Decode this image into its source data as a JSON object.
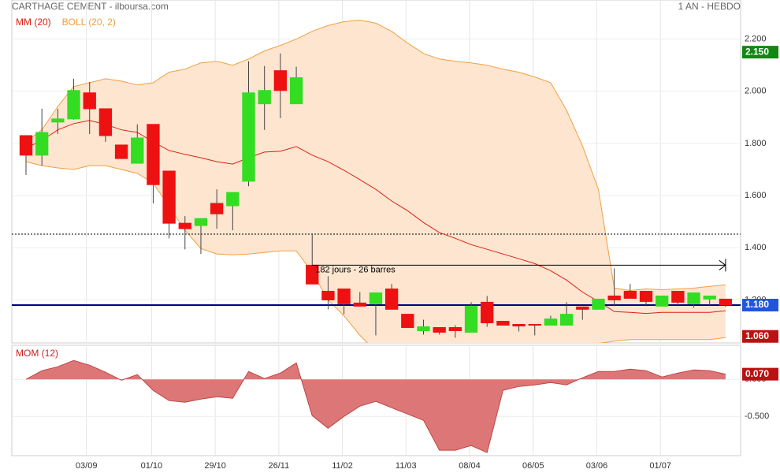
{
  "chart_data": [
    {
      "type": "candlestick",
      "title": "CARTHAGE CEMENT - ilboursa.com",
      "subtitle": "1 AN - HEBDO",
      "x": [
        0,
        1,
        2,
        3,
        4,
        5,
        6,
        7,
        8,
        9,
        10,
        11,
        12,
        13,
        14,
        15,
        16,
        17,
        18,
        19,
        20,
        21,
        22,
        23,
        24,
        25,
        26,
        27,
        28,
        29,
        30,
        31,
        32,
        33,
        34,
        35,
        36,
        37,
        38,
        39,
        40,
        41,
        42,
        43,
        44
      ],
      "open": [
        1.83,
        1.755,
        1.882,
        1.894,
        1.994,
        1.933,
        1.794,
        1.724,
        1.873,
        1.694,
        1.494,
        1.485,
        1.57,
        1.561,
        1.655,
        1.952,
        2.079,
        1.952,
        1.333,
        1.233,
        1.242,
        1.188,
        1.185,
        1.242,
        1.145,
        1.082,
        1.094,
        1.094,
        1.076,
        1.191,
        1.118,
        1.106,
        1.106,
        1.103,
        1.103,
        1.173,
        1.164,
        1.215,
        1.233,
        1.233,
        1.176,
        1.233,
        1.185,
        1.203,
        1.203
      ],
      "high": [
        1.83,
        1.933,
        1.933,
        2.048,
        2.036,
        1.933,
        1.794,
        1.873,
        1.873,
        1.694,
        1.521,
        1.512,
        1.624,
        1.612,
        2.115,
        2.097,
        2.145,
        2.094,
        1.455,
        1.291,
        1.242,
        1.23,
        1.227,
        1.261,
        1.145,
        1.124,
        1.094,
        1.103,
        1.191,
        1.215,
        1.118,
        1.106,
        1.106,
        1.139,
        1.191,
        1.173,
        1.203,
        1.321,
        1.261,
        1.233,
        1.215,
        1.233,
        1.227,
        1.215,
        1.203
      ],
      "low": [
        1.679,
        1.715,
        1.836,
        1.891,
        1.836,
        1.806,
        1.742,
        1.724,
        1.57,
        1.436,
        1.394,
        1.376,
        1.473,
        1.467,
        1.636,
        1.852,
        1.897,
        1.952,
        1.261,
        1.164,
        1.145,
        1.176,
        1.064,
        1.164,
        1.094,
        1.067,
        1.067,
        1.055,
        1.076,
        1.097,
        1.103,
        1.079,
        1.064,
        1.103,
        1.103,
        1.124,
        1.164,
        1.176,
        1.206,
        1.176,
        1.176,
        1.176,
        1.17,
        1.176,
        1.173
      ],
      "close": [
        1.755,
        1.842,
        1.894,
        2.003,
        1.933,
        1.83,
        1.742,
        1.821,
        1.642,
        1.494,
        1.473,
        1.512,
        1.53,
        1.612,
        1.994,
        2.003,
        2.003,
        2.052,
        1.261,
        1.2,
        1.185,
        1.176,
        1.227,
        1.164,
        1.094,
        1.097,
        1.076,
        1.082,
        1.176,
        1.112,
        1.103,
        1.1,
        1.103,
        1.127,
        1.145,
        1.164,
        1.203,
        1.2,
        1.206,
        1.194,
        1.215,
        1.191,
        1.227,
        1.215,
        1.18
      ],
      "up_color": "#33dd22",
      "down_color": "#ee1111",
      "overlays": [
        {
          "name": "MM (20)",
          "color": "#dd2211",
          "values": [
            1.782,
            1.812,
            1.852,
            1.876,
            1.888,
            1.873,
            1.852,
            1.842,
            1.806,
            1.773,
            1.758,
            1.745,
            1.73,
            1.721,
            1.745,
            1.767,
            1.77,
            1.788,
            1.755,
            1.73,
            1.697,
            1.661,
            1.624,
            1.579,
            1.542,
            1.497,
            1.458,
            1.436,
            1.412,
            1.394,
            1.376,
            1.358,
            1.339,
            1.312,
            1.276,
            1.23,
            1.194,
            1.155,
            1.152,
            1.148,
            1.152,
            1.152,
            1.152,
            1.152,
            1.158
          ]
        },
        {
          "name": "BOLL (20, 2)",
          "color": "#f0a040",
          "fill": "#fde5d0",
          "upper": [
            1.806,
            1.852,
            1.942,
            2.018,
            2.033,
            2.048,
            2.039,
            2.024,
            2.033,
            2.073,
            2.085,
            2.109,
            2.115,
            2.1,
            2.124,
            2.155,
            2.176,
            2.2,
            2.23,
            2.252,
            2.267,
            2.273,
            2.261,
            2.23,
            2.185,
            2.145,
            2.124,
            2.115,
            2.109,
            2.1,
            2.085,
            2.073,
            2.055,
            2.033,
            1.927,
            1.791,
            1.624,
            1.245,
            1.236,
            1.242,
            1.239,
            1.242,
            1.245,
            1.252,
            1.258
          ],
          "lower": [
            1.73,
            1.715,
            1.706,
            1.7,
            1.715,
            1.715,
            1.7,
            1.685,
            1.648,
            1.558,
            1.467,
            1.397,
            1.376,
            1.373,
            1.376,
            1.382,
            1.388,
            1.388,
            1.306,
            1.2,
            1.139,
            1.064,
            1.003,
            0.958,
            0.927,
            0.897,
            0.867,
            0.867,
            0.882,
            0.897,
            0.912,
            0.927,
            0.942,
            0.958,
            0.988,
            1.018,
            1.033,
            1.042,
            1.048,
            1.048,
            1.048,
            1.048,
            1.048,
            1.048,
            1.055
          ]
        }
      ],
      "xlim": [
        -0.892,
        44.946
      ],
      "xticks": [
        {
          "value": 3.8,
          "label": "03/09"
        },
        {
          "value": 7.9,
          "label": "01/10"
        },
        {
          "value": 11.9,
          "label": "29/10"
        },
        {
          "value": 15.9,
          "label": "26/11"
        },
        {
          "value": 19.9,
          "label": "11/02"
        },
        {
          "value": 23.9,
          "label": "11/03"
        },
        {
          "value": 27.9,
          "label": "08/04"
        },
        {
          "value": 31.9,
          "label": "06/05"
        },
        {
          "value": 35.9,
          "label": "03/06"
        },
        {
          "value": 39.9,
          "label": "01/07"
        }
      ],
      "ylim": [
        1.035,
        2.35
      ],
      "yticks": [
        {
          "value": 1.2,
          "label": "1.200"
        },
        {
          "value": 1.4,
          "label": "1.400"
        },
        {
          "value": 1.6,
          "label": "1.600"
        },
        {
          "value": 1.8,
          "label": "1.800"
        },
        {
          "value": 2.0,
          "label": "2.000"
        },
        {
          "value": 2.2,
          "label": "2.200"
        }
      ],
      "grid": true,
      "lines": [
        {
          "value": 1.452,
          "color": "#000000",
          "style": "dotted"
        },
        {
          "value": 1.18,
          "color": "#000080",
          "style": "solid"
        }
      ],
      "tags": [
        {
          "value": 2.15,
          "label": "2.150",
          "color": "#118811"
        },
        {
          "value": 1.18,
          "label": "1.180",
          "color": "#2255dd"
        },
        {
          "value": 1.06,
          "label": "1.060",
          "color": "#bb1111"
        }
      ],
      "annotation": {
        "text": "182 jours - 26 barres",
        "y": 1.333,
        "from": 18,
        "to": 44
      }
    },
    {
      "type": "area",
      "title": "MOM (12)",
      "color": "#dd7777",
      "line_color": "#c04444",
      "values": [
        0.0,
        0.117,
        0.17,
        0.255,
        0.191,
        0.096,
        -0.011,
        0.064,
        -0.149,
        -0.287,
        -0.309,
        -0.266,
        -0.234,
        -0.255,
        0.106,
        0.011,
        0.085,
        0.223,
        -0.489,
        -0.66,
        -0.5,
        -0.362,
        -0.298,
        -0.383,
        -0.468,
        -0.553,
        -0.957,
        -0.957,
        -0.894,
        -0.989,
        -0.149,
        -0.096,
        -0.074,
        -0.043,
        -0.074,
        0.021,
        0.106,
        0.106,
        0.138,
        0.117,
        0.032,
        0.085,
        0.128,
        0.117,
        0.07
      ],
      "ylim": [
        -1.03,
        0.46
      ],
      "yticks": [
        {
          "value": -0.5,
          "label": "-0.500"
        },
        {
          "value": 0,
          "label": "0.000"
        }
      ],
      "tag": {
        "value": 0.07,
        "label": "0.070",
        "color": "#bb1111"
      }
    }
  ]
}
